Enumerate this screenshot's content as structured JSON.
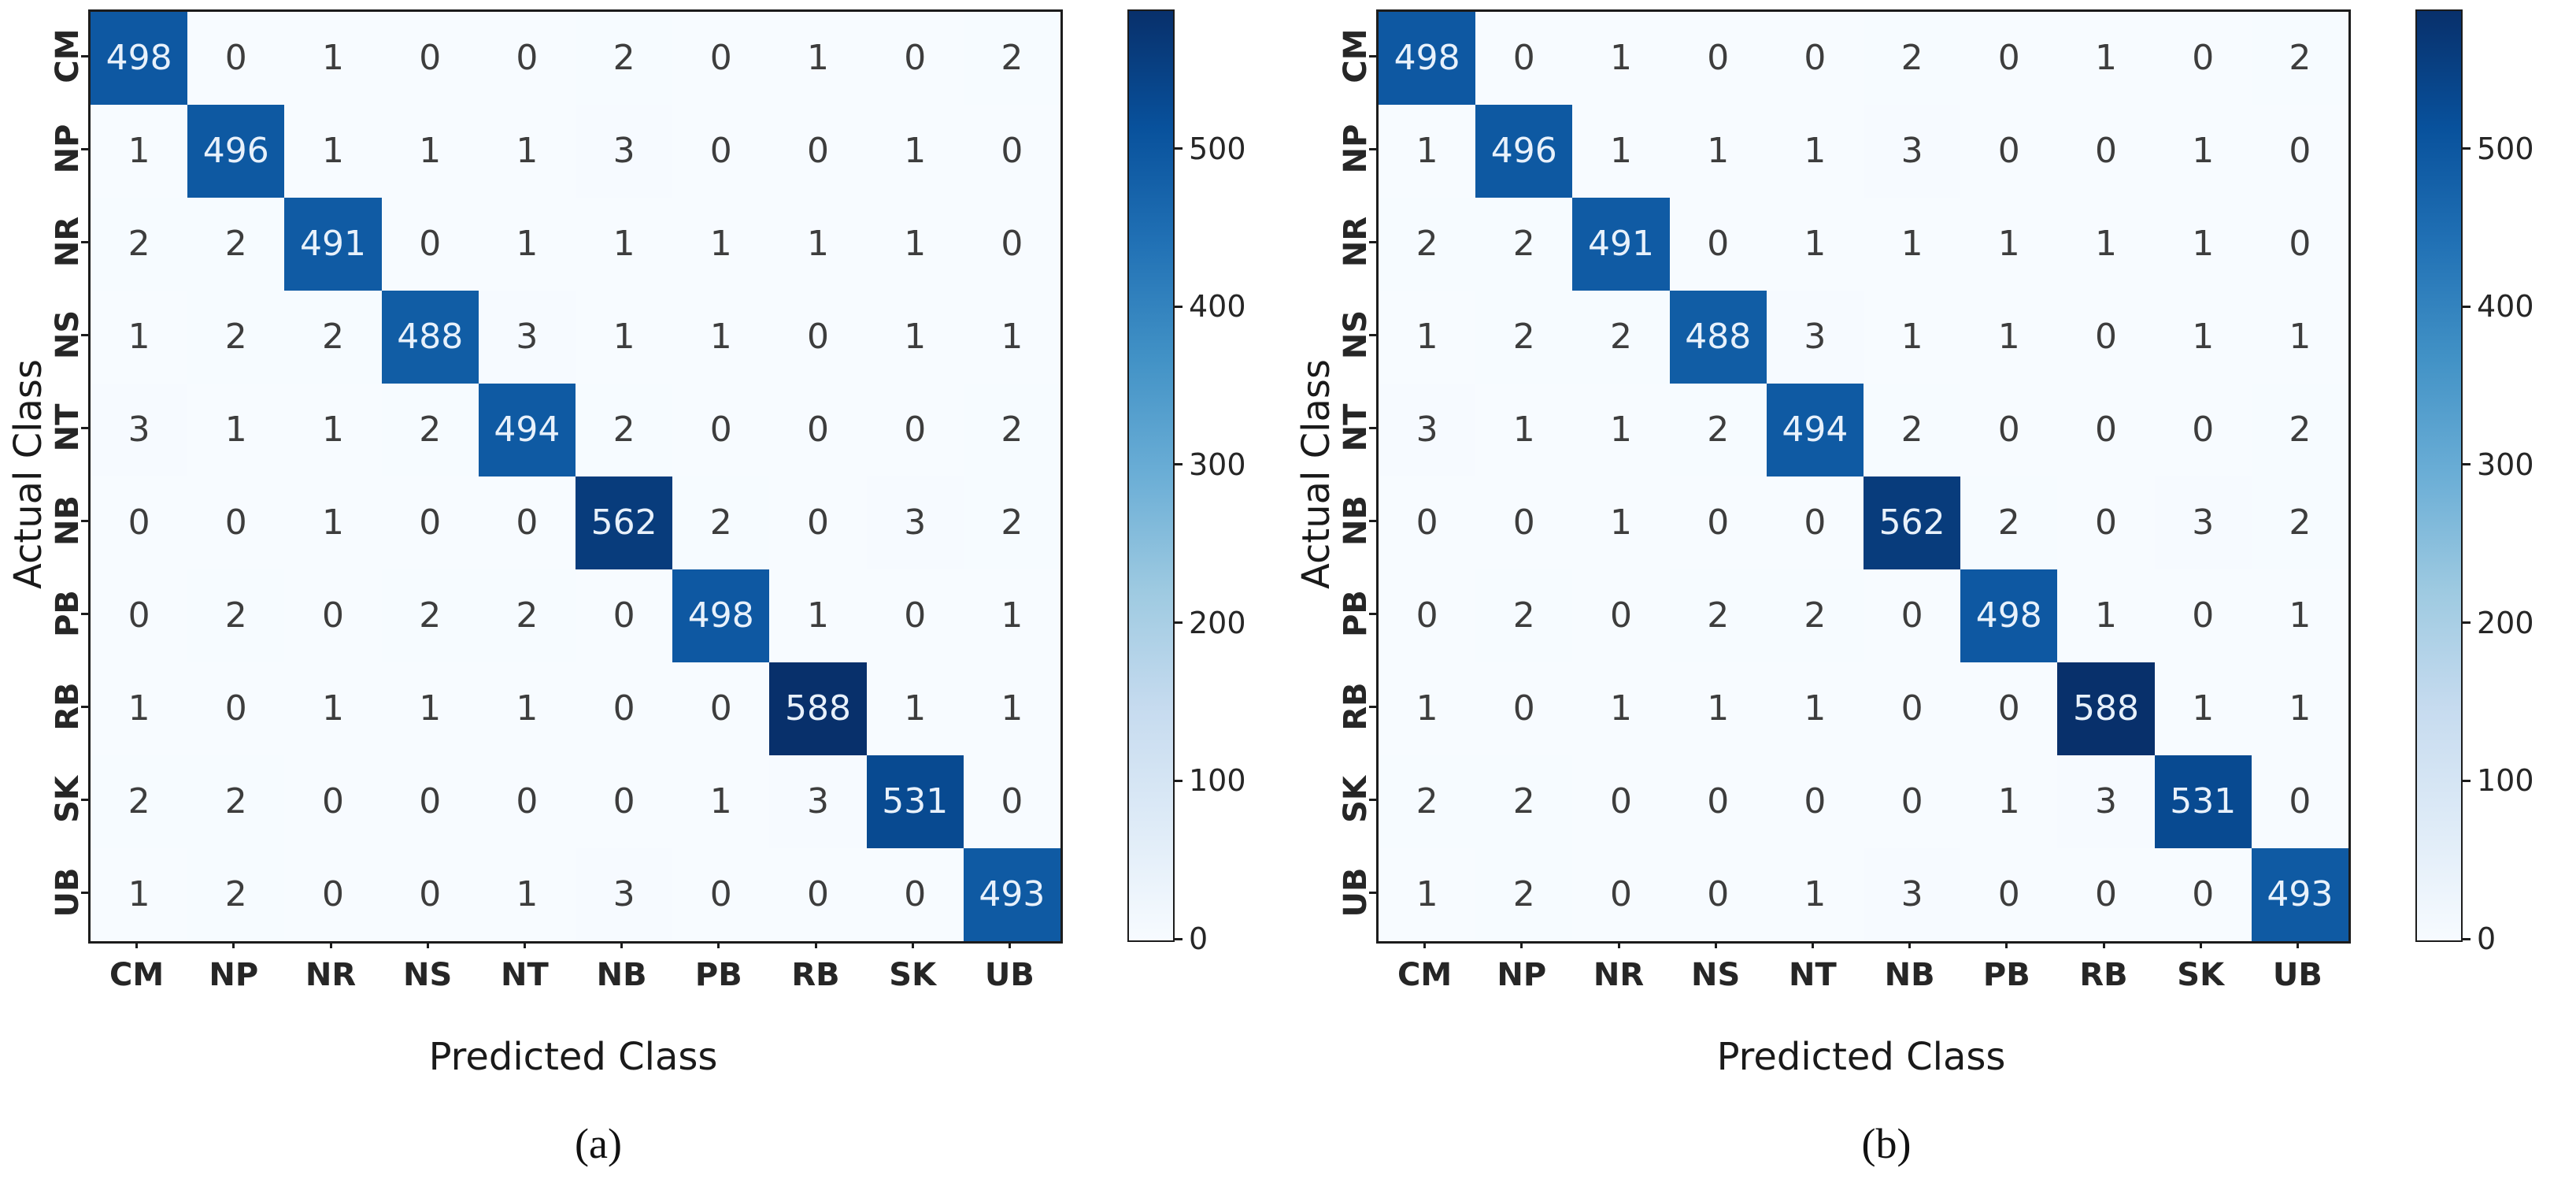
{
  "chart_data": {
    "type": "heatmap",
    "title": "",
    "xlabel": "Predicted Class",
    "ylabel": "Actual Class",
    "classes": [
      "CM",
      "NP",
      "NR",
      "NS",
      "NT",
      "NB",
      "PB",
      "RB",
      "SK",
      "UB"
    ],
    "vmin": 0,
    "vmax": 588,
    "colormap": "Blues",
    "colormap_anchors": [
      "#f7fbff",
      "#deebf7",
      "#c6dbef",
      "#9ecae1",
      "#6baed6",
      "#4292c6",
      "#2171b5",
      "#08519c",
      "#08306b"
    ],
    "colorbar_ticks": [
      0,
      100,
      200,
      300,
      400,
      500
    ],
    "annotation_color_dark_cell": "#e8f1fb",
    "annotation_color_light_cell": "#3d3d3d",
    "panels": [
      {
        "caption": "(a)",
        "matrix": [
          [
            498,
            0,
            1,
            0,
            0,
            2,
            0,
            1,
            0,
            2
          ],
          [
            1,
            496,
            1,
            1,
            1,
            3,
            0,
            0,
            1,
            0
          ],
          [
            2,
            2,
            491,
            0,
            1,
            1,
            1,
            1,
            1,
            0
          ],
          [
            1,
            2,
            2,
            488,
            3,
            1,
            1,
            0,
            1,
            1
          ],
          [
            3,
            1,
            1,
            2,
            494,
            2,
            0,
            0,
            0,
            2
          ],
          [
            0,
            0,
            1,
            0,
            0,
            562,
            2,
            0,
            3,
            2
          ],
          [
            0,
            2,
            0,
            2,
            2,
            0,
            498,
            1,
            0,
            1
          ],
          [
            1,
            0,
            1,
            1,
            1,
            0,
            0,
            588,
            1,
            1
          ],
          [
            2,
            2,
            0,
            0,
            0,
            0,
            1,
            3,
            531,
            0
          ],
          [
            1,
            2,
            0,
            0,
            1,
            3,
            0,
            0,
            0,
            493
          ]
        ]
      },
      {
        "caption": "(b)",
        "matrix": [
          [
            498,
            0,
            1,
            0,
            0,
            2,
            0,
            1,
            0,
            2
          ],
          [
            1,
            496,
            1,
            1,
            1,
            3,
            0,
            0,
            1,
            0
          ],
          [
            2,
            2,
            491,
            0,
            1,
            1,
            1,
            1,
            1,
            0
          ],
          [
            1,
            2,
            2,
            488,
            3,
            1,
            1,
            0,
            1,
            1
          ],
          [
            3,
            1,
            1,
            2,
            494,
            2,
            0,
            0,
            0,
            2
          ],
          [
            0,
            0,
            1,
            0,
            0,
            562,
            2,
            0,
            3,
            2
          ],
          [
            0,
            2,
            0,
            2,
            2,
            0,
            498,
            1,
            0,
            1
          ],
          [
            1,
            0,
            1,
            1,
            1,
            0,
            0,
            588,
            1,
            1
          ],
          [
            2,
            2,
            0,
            0,
            0,
            0,
            1,
            3,
            531,
            0
          ],
          [
            1,
            2,
            0,
            0,
            1,
            3,
            0,
            0,
            0,
            493
          ]
        ]
      }
    ]
  }
}
